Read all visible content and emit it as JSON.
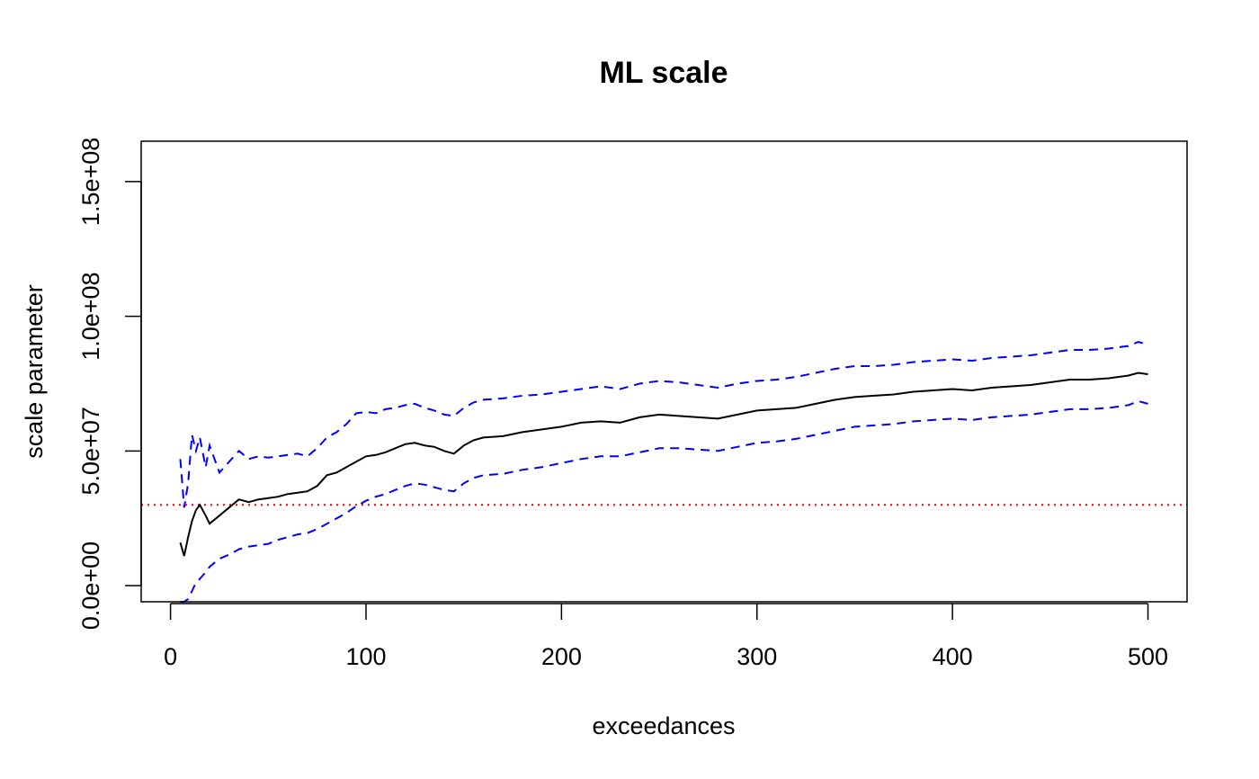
{
  "chart_data": {
    "type": "line",
    "title": "ML scale",
    "xlabel": "exceedances",
    "ylabel": "scale parameter",
    "xlim": [
      -15,
      520
    ],
    "ylim": [
      -6000000,
      165000000
    ],
    "x_ticks": [
      0,
      100,
      200,
      300,
      400,
      500
    ],
    "x_tick_labels": [
      "0",
      "100",
      "200",
      "300",
      "400",
      "500"
    ],
    "y_ticks": [
      0,
      50000000,
      100000000,
      150000000
    ],
    "y_tick_labels": [
      "0.0e+00",
      "5.0e+07",
      "1.0e+08",
      "1.5e+08"
    ],
    "reference_line": {
      "y": 30000000,
      "color": "#ff0000",
      "style": "dotted"
    },
    "x": [
      5,
      7,
      9,
      11,
      13,
      15,
      18,
      20,
      25,
      30,
      35,
      40,
      45,
      50,
      55,
      60,
      65,
      70,
      75,
      80,
      85,
      90,
      95,
      100,
      105,
      110,
      115,
      120,
      125,
      130,
      135,
      140,
      145,
      150,
      155,
      160,
      170,
      180,
      190,
      200,
      210,
      220,
      230,
      240,
      250,
      260,
      270,
      280,
      290,
      300,
      310,
      320,
      330,
      340,
      350,
      360,
      370,
      380,
      390,
      400,
      410,
      420,
      430,
      440,
      450,
      460,
      470,
      480,
      490,
      495,
      500
    ],
    "series": [
      {
        "values": [
          16000000,
          11000000,
          18000000,
          24000000,
          28000000,
          30000000,
          26000000,
          23000000,
          26000000,
          29000000,
          32000000,
          31000000,
          32000000,
          32500000,
          33000000,
          34000000,
          34500000,
          35000000,
          37000000,
          41000000,
          42000000,
          44000000,
          46000000,
          48000000,
          48500000,
          49500000,
          51000000,
          52500000,
          53000000,
          52000000,
          51500000,
          50000000,
          49000000,
          52000000,
          54000000,
          55000000,
          55500000,
          57000000,
          58000000,
          59000000,
          60500000,
          61000000,
          60500000,
          62500000,
          63500000,
          63000000,
          62500000,
          62000000,
          63500000,
          65000000,
          65500000,
          66000000,
          67500000,
          69000000,
          70000000,
          70500000,
          71000000,
          72000000,
          72500000,
          73000000,
          72500000,
          73500000,
          74000000,
          74500000,
          75500000,
          76500000,
          76500000,
          77000000,
          78000000,
          79000000,
          78500000
        ],
        "color": "#000000",
        "style": "solid"
      },
      {
        "values": [
          47000000,
          29000000,
          38000000,
          56000000,
          50000000,
          55000000,
          44000000,
          52000000,
          42000000,
          46000000,
          50000000,
          47000000,
          48000000,
          47500000,
          48000000,
          48500000,
          49000000,
          48000000,
          51000000,
          55000000,
          57000000,
          60000000,
          64000000,
          64500000,
          64000000,
          65500000,
          66000000,
          67000000,
          67500000,
          66000000,
          65000000,
          63500000,
          63000000,
          66000000,
          68000000,
          69000000,
          69500000,
          70500000,
          71000000,
          72000000,
          73000000,
          74000000,
          73000000,
          75000000,
          76000000,
          75500000,
          74500000,
          73500000,
          75000000,
          76000000,
          76500000,
          77500000,
          79000000,
          80500000,
          81500000,
          81500000,
          82000000,
          83000000,
          83500000,
          84000000,
          83500000,
          84500000,
          85000000,
          85500000,
          86500000,
          87500000,
          87500000,
          88000000,
          89000000,
          90500000,
          89500000
        ],
        "color": "#0000ff",
        "style": "dashed"
      },
      {
        "values": [
          -6000000,
          -6000000,
          -5000000,
          -2000000,
          1000000,
          2500000,
          5000000,
          7000000,
          10000000,
          11500000,
          13500000,
          14500000,
          15000000,
          15500000,
          17000000,
          18000000,
          19000000,
          19500000,
          21000000,
          23000000,
          25000000,
          27000000,
          29500000,
          31500000,
          33000000,
          34000000,
          35500000,
          37000000,
          38000000,
          37500000,
          36500000,
          35500000,
          35000000,
          38000000,
          40000000,
          41000000,
          41500000,
          43000000,
          44000000,
          45500000,
          47000000,
          48000000,
          48000000,
          49500000,
          51000000,
          51000000,
          50500000,
          50000000,
          51500000,
          53000000,
          53500000,
          54500000,
          56000000,
          57500000,
          59000000,
          59500000,
          60000000,
          61000000,
          61500000,
          62000000,
          61500000,
          62500000,
          63000000,
          63500000,
          64500000,
          65500000,
          65500000,
          66000000,
          67000000,
          68500000,
          67500000
        ],
        "color": "#0000ff",
        "style": "dashed"
      }
    ]
  }
}
